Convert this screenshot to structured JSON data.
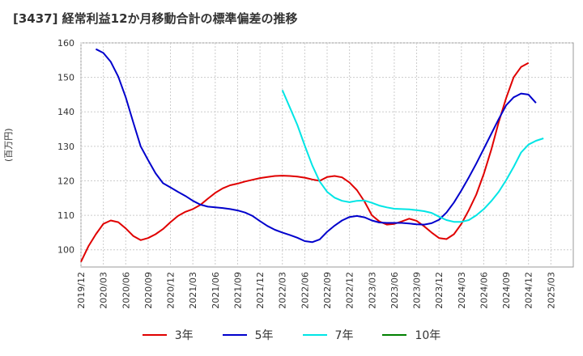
{
  "chart_data": {
    "type": "line",
    "title": "[3437]  経常利益12か月移動合計の標準偏差の推移",
    "ylabel": "(百万円)",
    "xlabel": "",
    "ylim": [
      95,
      160
    ],
    "yticks": [
      100,
      110,
      120,
      130,
      140,
      150,
      160
    ],
    "xlim": [
      0,
      66
    ],
    "grid": true,
    "legend_position": "bottom",
    "xtick_labels": [
      "2019/12",
      "2020/03",
      "2020/06",
      "2020/09",
      "2020/12",
      "2021/03",
      "2021/06",
      "2021/09",
      "2021/12",
      "2022/03",
      "2022/06",
      "2022/09",
      "2022/12",
      "2023/03",
      "2023/06",
      "2023/09",
      "2023/12",
      "2024/03",
      "2024/06",
      "2024/09",
      "2024/12",
      "2025/03"
    ],
    "series": [
      {
        "name": "3年",
        "color": "#e00000",
        "start": 0,
        "values": [
          96.5,
          101,
          104.5,
          107.5,
          108.5,
          108,
          106.2,
          104,
          102.8,
          103.4,
          104.5,
          106,
          108,
          109.8,
          111,
          111.8,
          113,
          114.8,
          116.5,
          117.8,
          118.7,
          119.2,
          119.8,
          120.3,
          120.8,
          121.1,
          121.4,
          121.5,
          121.4,
          121.2,
          120.9,
          120.4,
          120,
          121.1,
          121.4,
          121,
          119.5,
          117.3,
          114,
          110,
          108.2,
          107.3,
          107.5,
          108.2,
          109,
          108.4,
          106.8,
          105,
          103.4,
          103.1,
          104.5,
          107.5,
          111.5,
          116,
          122,
          129,
          137,
          144,
          150,
          153,
          154.2
        ]
      },
      {
        "name": "5年",
        "color": "#0000cc",
        "start": 2,
        "values": [
          158.2,
          157.1,
          154.5,
          150.2,
          144.2,
          137,
          130,
          126,
          122.2,
          119.3,
          118.1,
          116.8,
          115.6,
          114.2,
          113.1,
          112.5,
          112.3,
          112.1,
          111.8,
          111.4,
          110.8,
          109.8,
          108.3,
          106.9,
          105.8,
          105,
          104.3,
          103.5,
          102.5,
          102.2,
          103,
          105.2,
          107,
          108.5,
          109.5,
          109.8,
          109.4,
          108.5,
          107.9,
          107.8,
          107.8,
          107.8,
          107.6,
          107.4,
          107.3,
          107.7,
          108.7,
          110.8,
          113.7,
          117.2,
          121,
          125,
          129.3,
          133.6,
          137.9,
          141.9,
          144.2,
          145.3,
          145,
          142.6
        ]
      },
      {
        "name": "7年",
        "color": "#00e5e5",
        "start": 27,
        "values": [
          146.3,
          141.3,
          136.2,
          130.2,
          124.5,
          119.8,
          116.8,
          115.1,
          114.2,
          113.8,
          114.2,
          114.3,
          113.6,
          112.8,
          112.3,
          111.9,
          111.8,
          111.7,
          111.5,
          111.2,
          110.7,
          109.6,
          108.6,
          108.1,
          108.1,
          108.6,
          110,
          111.8,
          114.1,
          116.8,
          120.2,
          124,
          128.2,
          130.5,
          131.6,
          132.3
        ]
      },
      {
        "name": "10年",
        "color": "#008000",
        "start": 0,
        "values": []
      }
    ]
  }
}
